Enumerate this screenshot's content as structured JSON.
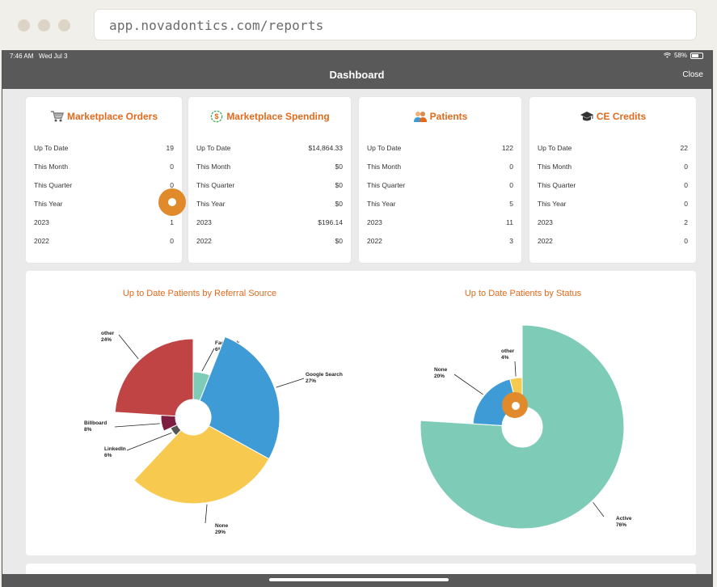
{
  "browser": {
    "url": "app.novadontics.com/reports"
  },
  "status_bar": {
    "time": "7:46 AM",
    "date": "Wed Jul 3",
    "battery": "58%"
  },
  "nav": {
    "title": "Dashboard",
    "close_label": "Close"
  },
  "cards": [
    {
      "title": "Marketplace Orders",
      "icon": "cart-icon",
      "rows": [
        {
          "label": "Up To Date",
          "value": "19"
        },
        {
          "label": "This Month",
          "value": "0"
        },
        {
          "label": "This Quarter",
          "value": "0"
        },
        {
          "label": "This Year",
          "value": ""
        },
        {
          "label": "2023",
          "value": "1"
        },
        {
          "label": "2022",
          "value": "0"
        }
      ]
    },
    {
      "title": "Marketplace Spending",
      "icon": "dollar-circle-icon",
      "rows": [
        {
          "label": "Up To Date",
          "value": "$14,864.33"
        },
        {
          "label": "This Month",
          "value": "$0"
        },
        {
          "label": "This Quarter",
          "value": "$0"
        },
        {
          "label": "This Year",
          "value": "$0"
        },
        {
          "label": "2023",
          "value": "$196.14"
        },
        {
          "label": "2022",
          "value": "$0"
        }
      ]
    },
    {
      "title": "Patients",
      "icon": "patients-icon",
      "rows": [
        {
          "label": "Up To Date",
          "value": "122"
        },
        {
          "label": "This Month",
          "value": "0"
        },
        {
          "label": "This Quarter",
          "value": "0"
        },
        {
          "label": "This Year",
          "value": "5"
        },
        {
          "label": "2023",
          "value": "11"
        },
        {
          "label": "2022",
          "value": "3"
        }
      ]
    },
    {
      "title": "CE Credits",
      "icon": "graduation-cap-icon",
      "rows": [
        {
          "label": "Up To Date",
          "value": "22"
        },
        {
          "label": "This Month",
          "value": "0"
        },
        {
          "label": "This Quarter",
          "value": "0"
        },
        {
          "label": "This Year",
          "value": "0"
        },
        {
          "label": "2023",
          "value": "2"
        },
        {
          "label": "2022",
          "value": "0"
        }
      ]
    }
  ],
  "chart_data": [
    {
      "type": "pie",
      "title": "Up to Date Patients by Referral Source",
      "slices": [
        {
          "name": "Facebook",
          "label": "6%",
          "value": 6,
          "color": "#7ecbb8"
        },
        {
          "name": "Google Search",
          "label": "27%",
          "value": 27,
          "color": "#3f9bd6"
        },
        {
          "name": "None",
          "label": "29%",
          "value": 29,
          "color": "#f7c94f"
        },
        {
          "name": "LinkedIn",
          "label": "6%",
          "value": 6,
          "color": "#555555"
        },
        {
          "name": "Billboard",
          "label": "8%",
          "value": 8,
          "color": "#7d1d3f"
        },
        {
          "name": "other",
          "label": "24%",
          "value": 24,
          "color": "#c04444"
        }
      ]
    },
    {
      "type": "pie",
      "title": "Up to Date Patients by Status",
      "slices": [
        {
          "name": "Active",
          "label": "76%",
          "value": 76,
          "color": "#7ecbb8"
        },
        {
          "name": "None",
          "label": "20%",
          "value": 20,
          "color": "#3f9bd6"
        },
        {
          "name": "other",
          "label": "4%",
          "value": 4,
          "color": "#f7c94f"
        }
      ]
    }
  ],
  "colors": {
    "accent": "#e06a1d",
    "navbar": "#595959",
    "touch_indicator": "#e08a2c"
  }
}
